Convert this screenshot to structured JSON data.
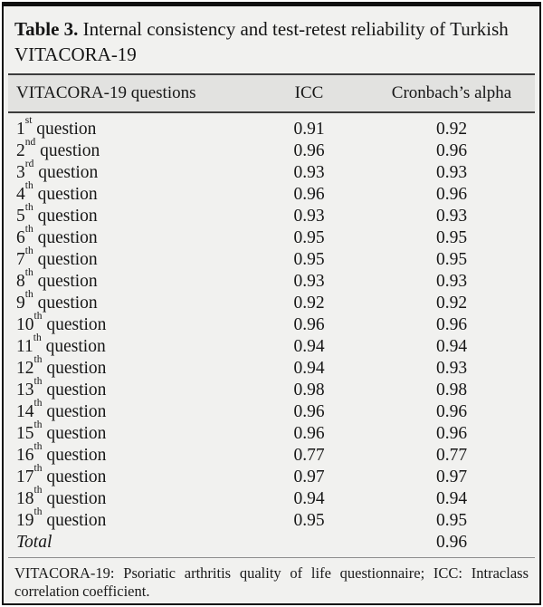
{
  "title": {
    "label": "Table 3.",
    "caption": " Internal consistency and test-retest reliability of Turkish VITACORA-19"
  },
  "table": {
    "columns": [
      "VITACORA-19 questions",
      "ICC",
      "Cronbach’s alpha"
    ],
    "rows": [
      {
        "num": "1",
        "sup": "st",
        "rest": " question",
        "icc": "0.91",
        "alpha": "0.92",
        "italic": false
      },
      {
        "num": "2",
        "sup": "nd",
        "rest": " question",
        "icc": "0.96",
        "alpha": "0.96",
        "italic": false
      },
      {
        "num": "3",
        "sup": "rd",
        "rest": " question",
        "icc": "0.93",
        "alpha": "0.93",
        "italic": false
      },
      {
        "num": "4",
        "sup": "th",
        "rest": " question",
        "icc": "0.96",
        "alpha": "0.96",
        "italic": false
      },
      {
        "num": "5",
        "sup": "th",
        "rest": " question",
        "icc": "0.93",
        "alpha": "0.93",
        "italic": false
      },
      {
        "num": "6",
        "sup": "th",
        "rest": " question",
        "icc": "0.95",
        "alpha": "0.95",
        "italic": false
      },
      {
        "num": "7",
        "sup": "th",
        "rest": " question",
        "icc": "0.95",
        "alpha": "0.95",
        "italic": false
      },
      {
        "num": "8",
        "sup": "th",
        "rest": " question",
        "icc": "0.93",
        "alpha": "0.93",
        "italic": false
      },
      {
        "num": "9",
        "sup": "th",
        "rest": " question",
        "icc": "0.92",
        "alpha": "0.92",
        "italic": false
      },
      {
        "num": "10",
        "sup": "th",
        "rest": " question",
        "icc": "0.96",
        "alpha": "0.96",
        "italic": false
      },
      {
        "num": "11",
        "sup": "th",
        "rest": " question",
        "icc": "0.94",
        "alpha": "0.94",
        "italic": false
      },
      {
        "num": "12",
        "sup": "th",
        "rest": " question",
        "icc": "0.94",
        "alpha": "0.93",
        "italic": false
      },
      {
        "num": "13",
        "sup": "th",
        "rest": " question",
        "icc": "0.98",
        "alpha": "0.98",
        "italic": false
      },
      {
        "num": "14",
        "sup": "th",
        "rest": " question",
        "icc": "0.96",
        "alpha": "0.96",
        "italic": false
      },
      {
        "num": "15",
        "sup": "th",
        "rest": " question",
        "icc": "0.96",
        "alpha": "0.96",
        "italic": false
      },
      {
        "num": "16",
        "sup": "th",
        "rest": " question",
        "icc": "0.77",
        "alpha": "0.77",
        "italic": false
      },
      {
        "num": "17",
        "sup": "th",
        "rest": " question",
        "icc": "0.97",
        "alpha": "0.97",
        "italic": false
      },
      {
        "num": "18",
        "sup": "th",
        "rest": " question",
        "icc": "0.94",
        "alpha": "0.94",
        "italic": false
      },
      {
        "num": "19",
        "sup": "th",
        "rest": " question",
        "icc": "0.95",
        "alpha": "0.95",
        "italic": false
      },
      {
        "num": "Total",
        "sup": "",
        "rest": "",
        "icc": "",
        "alpha": "0.96",
        "italic": true
      }
    ]
  },
  "footnote": "VITACORA-19: Psoriatic arthritis quality of life questionnaire; ICC: Intraclass correlation coefficient.",
  "colors": {
    "frame": "#101010",
    "interior_bg": "#f1f1ef",
    "header_band_bg": "#e2e2e0",
    "rule_dark": "#3c3c3c",
    "rule_light": "#8e8e8e"
  }
}
